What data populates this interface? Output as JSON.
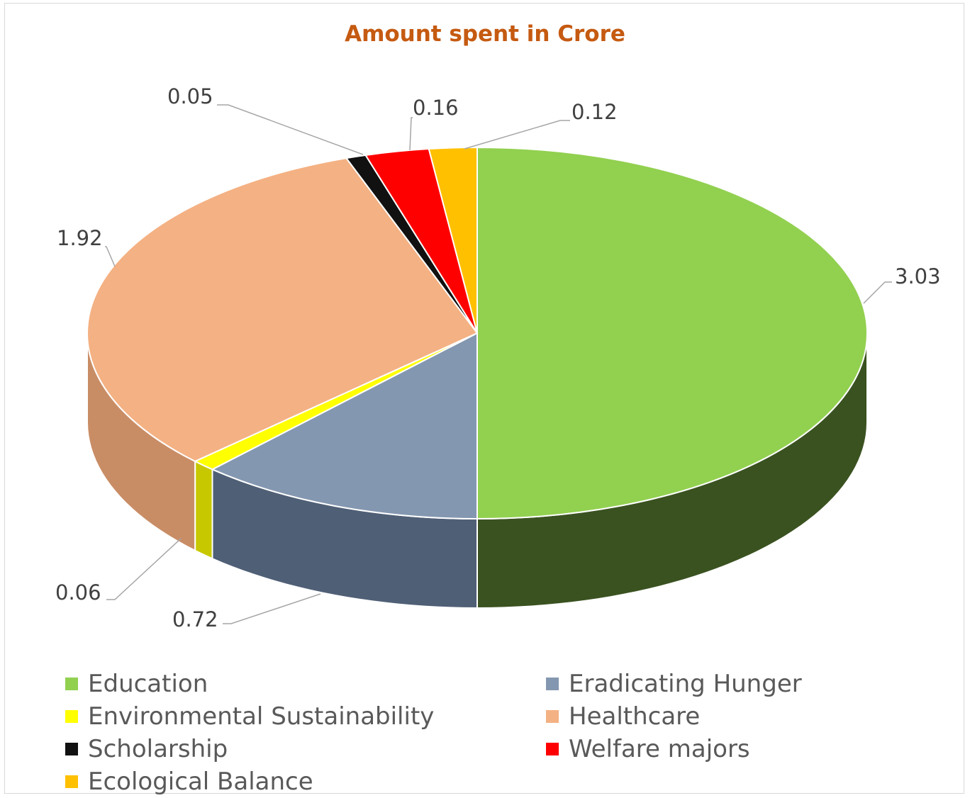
{
  "chart_data": {
    "type": "pie",
    "style": "3d",
    "title": "Amount spent in Crore",
    "slices": [
      {
        "label": "Education",
        "value": 3.03,
        "display": "3.03",
        "color": "#92d050",
        "side": "#3a5220"
      },
      {
        "label": "Eradicating Hunger",
        "value": 0.72,
        "display": "0.72",
        "color": "#8497b0",
        "side": "#4f5f76"
      },
      {
        "label": "Environmental Sustainability",
        "value": 0.06,
        "display": "0.06",
        "color": "#ffff00",
        "side": "#c8c800"
      },
      {
        "label": "Healthcare",
        "value": 1.92,
        "display": "1.92",
        "color": "#f4b183",
        "side": "#c98d66"
      },
      {
        "label": "Scholarship",
        "value": 0.05,
        "display": "0.05",
        "color": "#111111",
        "side": "#000000"
      },
      {
        "label": "Welfare majors",
        "value": 0.16,
        "display": "0.16",
        "color": "#ff0000",
        "side": "#b00000"
      },
      {
        "label": "Ecological Balance",
        "value": 0.12,
        "display": "0.12",
        "color": "#ffc000",
        "side": "#c99700"
      }
    ],
    "legend_position": "bottom"
  }
}
